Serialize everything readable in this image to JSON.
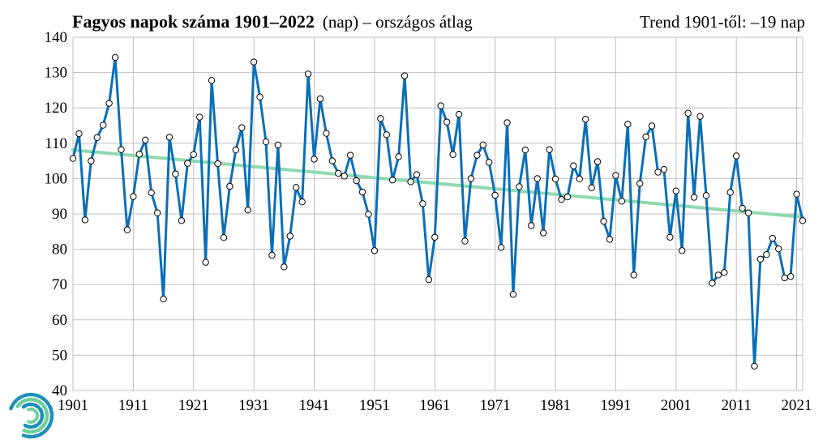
{
  "title": {
    "main": "Fagyos napok száma 1901–2022",
    "unit": "(nap) – országos átlag"
  },
  "trend_label": "Trend 1901-től: –19 nap",
  "logo": "spiral-logo-icon",
  "colors": {
    "series": "#0b6fb8",
    "trend": "#8fd9b0",
    "marker_fill": "#ffffff",
    "grid": "#bfbfbf"
  },
  "chart_data": {
    "type": "line",
    "title": "Fagyos napok száma 1901–2022",
    "xlabel": "",
    "ylabel": "",
    "ylim": [
      40,
      140
    ],
    "yticks": [
      40,
      50,
      60,
      70,
      80,
      90,
      100,
      110,
      120,
      130,
      140
    ],
    "xlim": [
      1901,
      2022
    ],
    "xticks": [
      1901,
      1911,
      1921,
      1931,
      1941,
      1951,
      1961,
      1971,
      1981,
      1991,
      2001,
      2011,
      2021
    ],
    "grid": true,
    "x_start": 1901,
    "series": [
      {
        "values": [
          105.7,
          112.7,
          88.3,
          105,
          111.6,
          115.1,
          121.3,
          134.3,
          108.2,
          85.5,
          94.9,
          106.9,
          110.9,
          96,
          90.3,
          65.9,
          111.7,
          101.3,
          88.1,
          104.3,
          106.8,
          117.4,
          76.3,
          127.8,
          104.2,
          83.3,
          97.8,
          108.1,
          114.4,
          91.1,
          133,
          123.1,
          110.4,
          78.3,
          109.5,
          75,
          83.7,
          97.5,
          93.4,
          129.6,
          105.5,
          122.6,
          112.8,
          105,
          101.5,
          100.7,
          106.6,
          99.4,
          96.2,
          89.9,
          79.6,
          117,
          112.4,
          99.6,
          106.2,
          129.1,
          99.1,
          101.1,
          92.9,
          71.4,
          83.4,
          120.6,
          116,
          106.8,
          118.2,
          82.3,
          100,
          106.6,
          109.5,
          104.6,
          95.3,
          80.5,
          115.8,
          67.2,
          97.7,
          108.1,
          86.7,
          100,
          84.6,
          108.2,
          99.9,
          94.1,
          94.8,
          103.6,
          99.9,
          116.8,
          97.4,
          104.8,
          87.9,
          82.8,
          100.9,
          93.6,
          115.4,
          72.7,
          98.6,
          111.8,
          114.9,
          101.8,
          102.6,
          83.4,
          96.5,
          79.6,
          118.5,
          94.7,
          117.6,
          95.2,
          70.4,
          72.7,
          73.4,
          96.1,
          106.4,
          91.6,
          90.3,
          46.9,
          77.2,
          78.5,
          83.1,
          80.1,
          71.9,
          72.3,
          95.6,
          88.1
        ]
      },
      {
        "values": [
          108.1,
          89.1
        ]
      }
    ]
  }
}
